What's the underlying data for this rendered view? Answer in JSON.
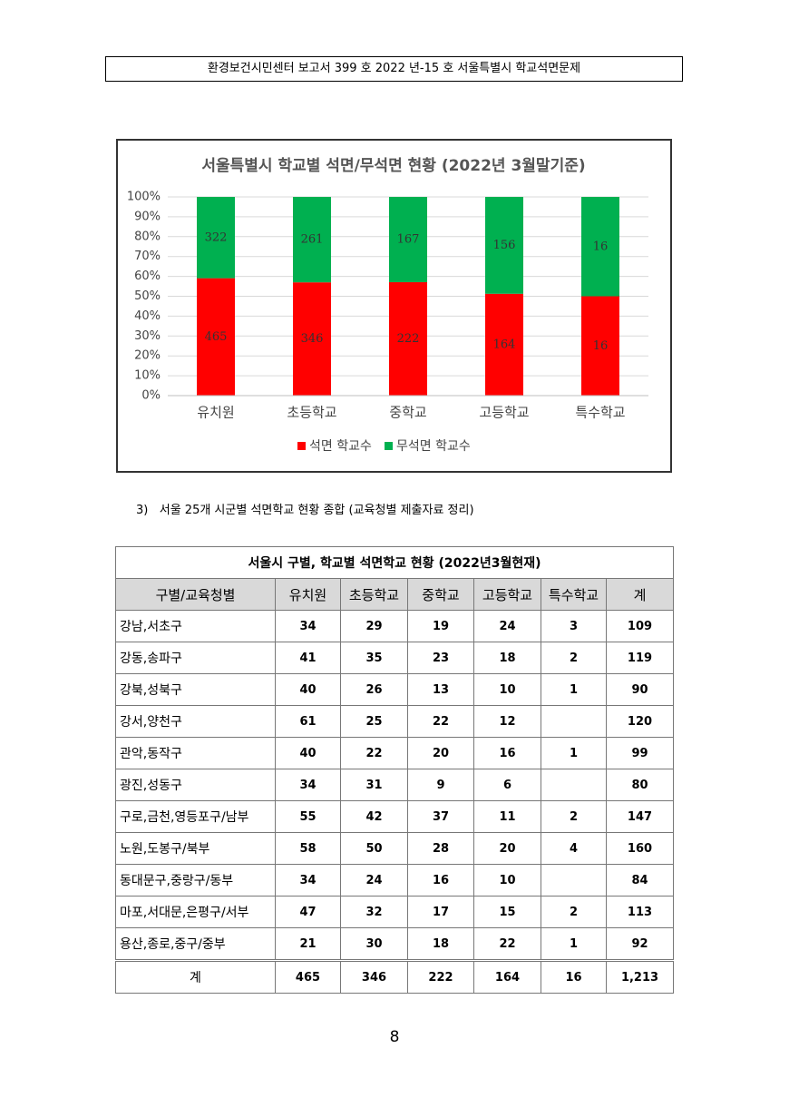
{
  "header": {
    "title": "환경보건시민센터 보고서 399 호 2022 년-15 호 서울특별시 학교석면문제"
  },
  "chart_data": {
    "type": "bar",
    "stacking": "percent",
    "title": "서울특별시 학교별 석면/무석면 현황 (2022년 3월말기준)",
    "categories": [
      "유치원",
      "초등학교",
      "중학교",
      "고등학교",
      "특수학교"
    ],
    "series": [
      {
        "name": "석면 학교수",
        "color": "#ff0000",
        "values": [
          465,
          346,
          222,
          164,
          16
        ]
      },
      {
        "name": "무석면 학교수",
        "color": "#00b050",
        "values": [
          322,
          261,
          167,
          156,
          16
        ]
      }
    ],
    "ylim": [
      0,
      100
    ],
    "yticks": [
      {
        "value": 0,
        "label": "0%"
      },
      {
        "value": 10,
        "label": "10%"
      },
      {
        "value": 20,
        "label": "20%"
      },
      {
        "value": 30,
        "label": "30%"
      },
      {
        "value": 40,
        "label": "40%"
      },
      {
        "value": 50,
        "label": "50%"
      },
      {
        "value": 60,
        "label": "60%"
      },
      {
        "value": 70,
        "label": "70%"
      },
      {
        "value": 80,
        "label": "80%"
      },
      {
        "value": 90,
        "label": "90%"
      },
      {
        "value": 100,
        "label": "100%"
      }
    ],
    "grid": true,
    "legend": "bottom"
  },
  "section": {
    "number": "3)",
    "title": "서울 25개 시군별 석면학교 현황 종합 (교육청별 제출자료 정리)"
  },
  "table": {
    "title": "서울시 구별, 학교별 석면학교 현황 (2022년3월현재)",
    "columns": [
      "구별/교육청별",
      "유치원",
      "초등학교",
      "중학교",
      "고등학교",
      "특수학교",
      "계"
    ],
    "rows": [
      [
        "강남,서초구",
        "34",
        "29",
        "19",
        "24",
        "3",
        "109"
      ],
      [
        "강동,송파구",
        "41",
        "35",
        "23",
        "18",
        "2",
        "119"
      ],
      [
        "강북,성북구",
        "40",
        "26",
        "13",
        "10",
        "1",
        "90"
      ],
      [
        "강서,양천구",
        "61",
        "25",
        "22",
        "12",
        null,
        "120"
      ],
      [
        "관악,동작구",
        "40",
        "22",
        "20",
        "16",
        "1",
        "99"
      ],
      [
        "광진,성동구",
        "34",
        "31",
        "9",
        "6",
        null,
        "80"
      ],
      [
        "구로,금천,영등포구/남부",
        "55",
        "42",
        "37",
        "11",
        "2",
        "147"
      ],
      [
        "노원,도봉구/북부",
        "58",
        "50",
        "28",
        "20",
        "4",
        "160"
      ],
      [
        "동대문구,중랑구/동부",
        "34",
        "24",
        "16",
        "10",
        null,
        "84"
      ],
      [
        "마포,서대문,은평구/서부",
        "47",
        "32",
        "17",
        "15",
        "2",
        "113"
      ],
      [
        "용산,종로,중구/중부",
        "21",
        "30",
        "18",
        "22",
        "1",
        "92"
      ]
    ],
    "total": [
      "계",
      "465",
      "346",
      "222",
      "164",
      "16",
      "1,213"
    ]
  },
  "page_number": "8"
}
